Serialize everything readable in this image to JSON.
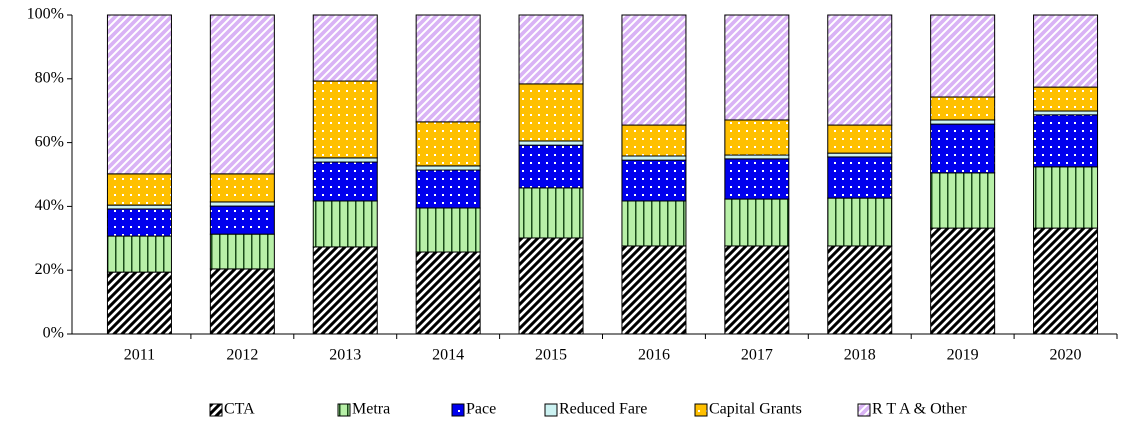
{
  "chart_data": {
    "type": "stacked_bar",
    "categories": [
      "2011",
      "2012",
      "2013",
      "2014",
      "2015",
      "2016",
      "2017",
      "2018",
      "2019",
      "2020"
    ],
    "series": [
      {
        "name": "CTA",
        "color": "#000000",
        "values": [
          19.4,
          20.4,
          27.3,
          25.7,
          30.1,
          27.6,
          27.6,
          27.6,
          33.2,
          33.2
        ]
      },
      {
        "name": "Metra",
        "color": "#b8f0a8",
        "values": [
          11.3,
          10.9,
          14.4,
          13.8,
          15.7,
          14.1,
          14.7,
          15.0,
          17.3,
          19.2
        ]
      },
      {
        "name": "Pace",
        "color": "#0000ee",
        "values": [
          8.5,
          8.8,
          12.2,
          11.9,
          13.4,
          12.8,
          12.6,
          12.9,
          15.3,
          16.3
        ]
      },
      {
        "name": "Reduced Fare",
        "color": "#ccf2f2",
        "values": [
          1.2,
          1.3,
          1.3,
          1.3,
          1.3,
          1.3,
          1.2,
          1.2,
          1.3,
          1.2
        ]
      },
      {
        "name": "Capital Grants",
        "color": "#ffc000",
        "values": [
          9.8,
          8.8,
          24.1,
          13.8,
          17.9,
          9.7,
          11.0,
          8.8,
          7.2,
          7.5
        ]
      },
      {
        "name": "R T A & Other",
        "color": "#d9b3f5",
        "values": [
          49.8,
          49.8,
          20.7,
          33.5,
          21.6,
          34.5,
          32.9,
          34.5,
          25.7,
          22.6
        ]
      }
    ],
    "ylim": [
      0,
      100
    ],
    "yticks": [
      {
        "value": 0,
        "label": "0%"
      },
      {
        "value": 20,
        "label": "20%"
      },
      {
        "value": 40,
        "label": "40%"
      },
      {
        "value": 60,
        "label": "60%"
      },
      {
        "value": 80,
        "label": "80%"
      },
      {
        "value": 100,
        "label": "100%"
      }
    ],
    "legend": "bottom"
  }
}
